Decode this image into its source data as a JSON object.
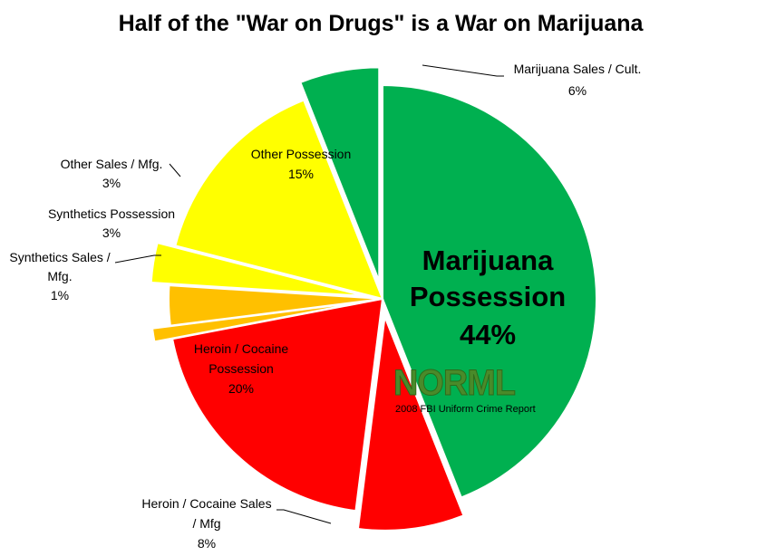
{
  "chart_data": {
    "type": "pie",
    "title": "Half of the \"War on Drugs\" is a War on Marijuana",
    "slices": [
      {
        "label": "Marijuana Possession",
        "value": 44,
        "value_label": "44%",
        "color": "#00b050",
        "exploded": false
      },
      {
        "label": "Heroin / Cocaine Sales / Mfg",
        "value": 8,
        "value_label": "8%",
        "color": "#ff0000",
        "exploded": true
      },
      {
        "label": "Heroin / Cocaine Possession",
        "value": 20,
        "value_label": "20%",
        "color": "#ff0000",
        "exploded": false
      },
      {
        "label": "Synthetics Sales / Mfg.",
        "value": 1,
        "value_label": "1%",
        "color": "#ffc000",
        "exploded": true
      },
      {
        "label": "Synthetics Possession",
        "value": 3,
        "value_label": "3%",
        "color": "#ffc000",
        "exploded": false
      },
      {
        "label": "Other Sales / Mfg.",
        "value": 3,
        "value_label": "3%",
        "color": "#ffff00",
        "exploded": true
      },
      {
        "label": "Other Possession",
        "value": 15,
        "value_label": "15%",
        "color": "#ffff00",
        "exploded": false
      },
      {
        "label": "Marijuana Sales / Cult.",
        "value": 6,
        "value_label": "6%",
        "color": "#00b050",
        "exploded": true
      }
    ],
    "start_angle_deg": 0,
    "direction": "clockwise"
  },
  "logo_text": "NORML",
  "source_text": "2008 FBI Uniform Crime Report"
}
